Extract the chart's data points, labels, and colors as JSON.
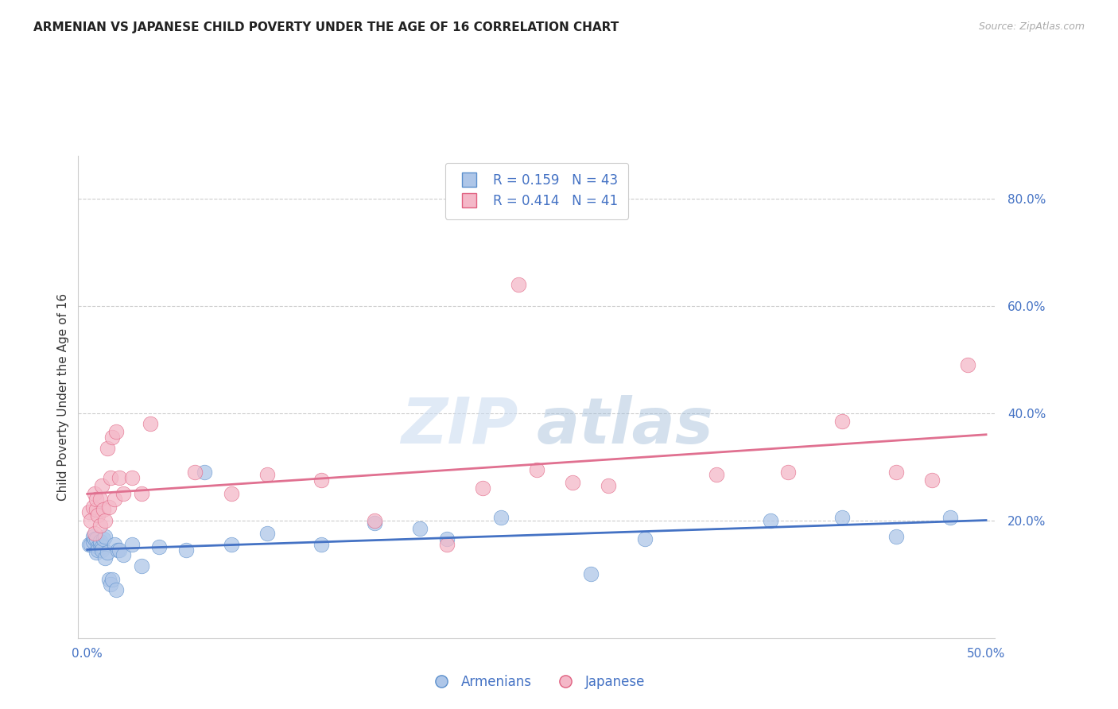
{
  "title": "ARMENIAN VS JAPANESE CHILD POVERTY UNDER THE AGE OF 16 CORRELATION CHART",
  "source": "Source: ZipAtlas.com",
  "ylabel": "Child Poverty Under the Age of 16",
  "xlim": [
    -0.005,
    0.505
  ],
  "ylim": [
    -0.02,
    0.88
  ],
  "xticks": [
    0.0,
    0.5
  ],
  "xtick_labels": [
    "0.0%",
    "50.0%"
  ],
  "yticks_right": [
    0.2,
    0.4,
    0.6,
    0.8
  ],
  "ytick_labels": [
    "20.0%",
    "40.0%",
    "60.0%",
    "80.0%"
  ],
  "armenian_fill": "#aec6e8",
  "armenian_edge": "#5b8fcc",
  "japanese_fill": "#f4b8c8",
  "japanese_edge": "#e06080",
  "armenian_line_color": "#4472c4",
  "japanese_line_color": "#e07090",
  "legend_armenian_r": "R = 0.159",
  "legend_armenian_n": "N = 43",
  "legend_japanese_r": "R = 0.414",
  "legend_japanese_n": "N = 41",
  "watermark_zip": "ZIP",
  "watermark_atlas": "atlas",
  "armenian_x": [
    0.001,
    0.002,
    0.003,
    0.003,
    0.004,
    0.005,
    0.005,
    0.006,
    0.006,
    0.007,
    0.007,
    0.008,
    0.008,
    0.009,
    0.01,
    0.01,
    0.011,
    0.012,
    0.013,
    0.014,
    0.015,
    0.016,
    0.017,
    0.018,
    0.02,
    0.025,
    0.03,
    0.04,
    0.055,
    0.065,
    0.08,
    0.1,
    0.13,
    0.16,
    0.185,
    0.2,
    0.23,
    0.28,
    0.31,
    0.38,
    0.42,
    0.45,
    0.48
  ],
  "armenian_y": [
    0.155,
    0.155,
    0.16,
    0.17,
    0.165,
    0.14,
    0.165,
    0.15,
    0.145,
    0.155,
    0.16,
    0.15,
    0.145,
    0.165,
    0.17,
    0.13,
    0.14,
    0.09,
    0.08,
    0.09,
    0.155,
    0.07,
    0.145,
    0.145,
    0.135,
    0.155,
    0.115,
    0.15,
    0.145,
    0.29,
    0.155,
    0.175,
    0.155,
    0.195,
    0.185,
    0.165,
    0.205,
    0.1,
    0.165,
    0.2,
    0.205,
    0.17,
    0.205
  ],
  "japanese_x": [
    0.001,
    0.002,
    0.003,
    0.004,
    0.004,
    0.005,
    0.005,
    0.006,
    0.007,
    0.007,
    0.008,
    0.009,
    0.01,
    0.011,
    0.012,
    0.013,
    0.014,
    0.015,
    0.016,
    0.018,
    0.02,
    0.025,
    0.03,
    0.035,
    0.06,
    0.08,
    0.1,
    0.13,
    0.16,
    0.2,
    0.22,
    0.25,
    0.27,
    0.24,
    0.29,
    0.35,
    0.39,
    0.42,
    0.45,
    0.47,
    0.49
  ],
  "japanese_y": [
    0.215,
    0.2,
    0.225,
    0.175,
    0.25,
    0.22,
    0.24,
    0.21,
    0.19,
    0.24,
    0.265,
    0.22,
    0.2,
    0.335,
    0.225,
    0.28,
    0.355,
    0.24,
    0.365,
    0.28,
    0.25,
    0.28,
    0.25,
    0.38,
    0.29,
    0.25,
    0.285,
    0.275,
    0.2,
    0.155,
    0.26,
    0.295,
    0.27,
    0.64,
    0.265,
    0.285,
    0.29,
    0.385,
    0.29,
    0.275,
    0.49
  ],
  "background_color": "#ffffff",
  "grid_color": "#cccccc",
  "axis_label_color": "#4472c4",
  "title_fontsize": 11,
  "ylabel_fontsize": 11,
  "tick_fontsize": 11,
  "source_fontsize": 9
}
